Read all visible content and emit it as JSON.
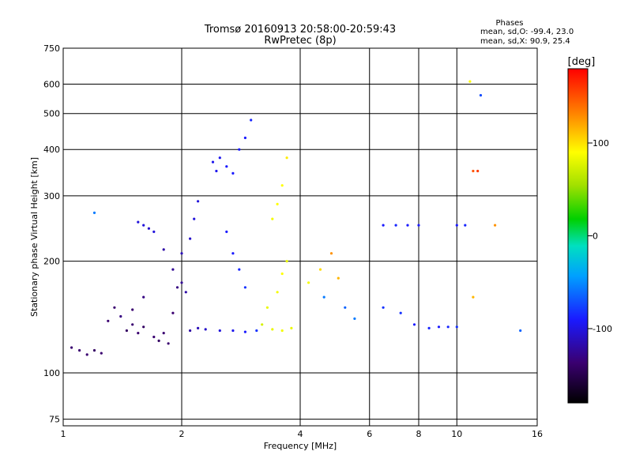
{
  "chart_data": {
    "type": "scatter",
    "title": "Tromsø 20160913 20:58:00-20:59:43",
    "subtitle": "RwPretec (8p)",
    "xlabel": "Frequency [MHz]",
    "ylabel": "Stationary phase Virtual Height [km]",
    "x_scale": "log",
    "y_scale": "log",
    "xlim": [
      1,
      16
    ],
    "ylim": [
      72,
      750
    ],
    "x_ticks": [
      1,
      2,
      4,
      6,
      8,
      10,
      16
    ],
    "y_ticks": [
      75,
      100,
      200,
      300,
      400,
      500,
      600,
      750
    ],
    "grid": true,
    "color_scale": {
      "label": "[deg]",
      "range": [
        -180,
        180
      ],
      "ticks": [
        100,
        0,
        -100
      ]
    },
    "stats": {
      "header": "Phases",
      "line1": "mean, sd,O: -99.4, 23.0",
      "line2": "mean, sd,X:  90.9, 25.4"
    },
    "series": [
      {
        "values": [
          [
            1.05,
            117,
            -140
          ],
          [
            1.1,
            115,
            -140
          ],
          [
            1.15,
            112,
            -140
          ],
          [
            1.2,
            115,
            -145
          ],
          [
            1.25,
            113,
            -140
          ],
          [
            1.2,
            270,
            -60
          ],
          [
            1.3,
            138,
            -140
          ],
          [
            1.35,
            150,
            -140
          ],
          [
            1.4,
            142,
            -135
          ],
          [
            1.45,
            130,
            -145
          ],
          [
            1.5,
            135,
            -140
          ],
          [
            1.55,
            128,
            -140
          ],
          [
            1.6,
            133,
            -145
          ],
          [
            1.5,
            148,
            -140
          ],
          [
            1.6,
            160,
            -135
          ],
          [
            1.7,
            125,
            -140
          ],
          [
            1.75,
            122,
            -145
          ],
          [
            1.8,
            128,
            -140
          ],
          [
            1.85,
            120,
            -140
          ],
          [
            1.9,
            145,
            -140
          ],
          [
            1.95,
            170,
            -135
          ],
          [
            1.55,
            255,
            -110
          ],
          [
            1.6,
            250,
            -110
          ],
          [
            1.65,
            245,
            -115
          ],
          [
            1.7,
            240,
            -110
          ],
          [
            1.8,
            215,
            -125
          ],
          [
            1.9,
            190,
            -130
          ],
          [
            2.0,
            175,
            -130
          ],
          [
            2.05,
            165,
            -125
          ],
          [
            2.1,
            130,
            -125
          ],
          [
            2.2,
            132,
            -120
          ],
          [
            2.3,
            131,
            -115
          ],
          [
            2.5,
            130,
            -110
          ],
          [
            2.7,
            130,
            -105
          ],
          [
            2.9,
            129,
            -100
          ],
          [
            3.1,
            130,
            -90
          ],
          [
            2.0,
            210,
            -120
          ],
          [
            2.1,
            230,
            -115
          ],
          [
            2.15,
            260,
            -110
          ],
          [
            2.2,
            290,
            -110
          ],
          [
            2.4,
            370,
            -105
          ],
          [
            2.45,
            350,
            -105
          ],
          [
            2.5,
            380,
            -105
          ],
          [
            2.6,
            360,
            -100
          ],
          [
            2.7,
            345,
            -100
          ],
          [
            2.8,
            400,
            -100
          ],
          [
            2.9,
            430,
            -100
          ],
          [
            3.0,
            480,
            -95
          ],
          [
            2.6,
            240,
            -100
          ],
          [
            2.7,
            210,
            -100
          ],
          [
            2.8,
            190,
            -95
          ],
          [
            2.9,
            170,
            -90
          ],
          [
            3.2,
            135,
            80
          ],
          [
            3.4,
            131,
            90
          ],
          [
            3.6,
            130,
            95
          ],
          [
            3.8,
            132,
            90
          ],
          [
            3.3,
            150,
            90
          ],
          [
            3.5,
            165,
            95
          ],
          [
            3.6,
            185,
            100
          ],
          [
            3.7,
            200,
            90
          ],
          [
            3.4,
            260,
            95
          ],
          [
            3.5,
            285,
            100
          ],
          [
            3.6,
            320,
            100
          ],
          [
            3.7,
            380,
            105
          ],
          [
            4.2,
            175,
            95
          ],
          [
            4.5,
            190,
            110
          ],
          [
            4.8,
            210,
            130
          ],
          [
            5.0,
            180,
            120
          ],
          [
            4.6,
            160,
            -60
          ],
          [
            5.2,
            150,
            -70
          ],
          [
            5.5,
            140,
            -60
          ],
          [
            6.5,
            250,
            -100
          ],
          [
            7.0,
            250,
            -95
          ],
          [
            7.5,
            250,
            -100
          ],
          [
            8.0,
            250,
            -100
          ],
          [
            6.5,
            150,
            -90
          ],
          [
            7.2,
            145,
            -90
          ],
          [
            7.8,
            135,
            -100
          ],
          [
            8.5,
            132,
            -95
          ],
          [
            9.0,
            133,
            -100
          ],
          [
            9.5,
            133,
            -95
          ],
          [
            10.0,
            133,
            -90
          ],
          [
            10.0,
            250,
            -100
          ],
          [
            10.5,
            250,
            -95
          ],
          [
            11.0,
            350,
            150
          ],
          [
            11.3,
            350,
            160
          ],
          [
            11.0,
            160,
            120
          ],
          [
            12.5,
            250,
            130
          ],
          [
            10.8,
            610,
            100
          ],
          [
            11.5,
            560,
            -80
          ],
          [
            14.5,
            130,
            -70
          ]
        ]
      }
    ]
  }
}
